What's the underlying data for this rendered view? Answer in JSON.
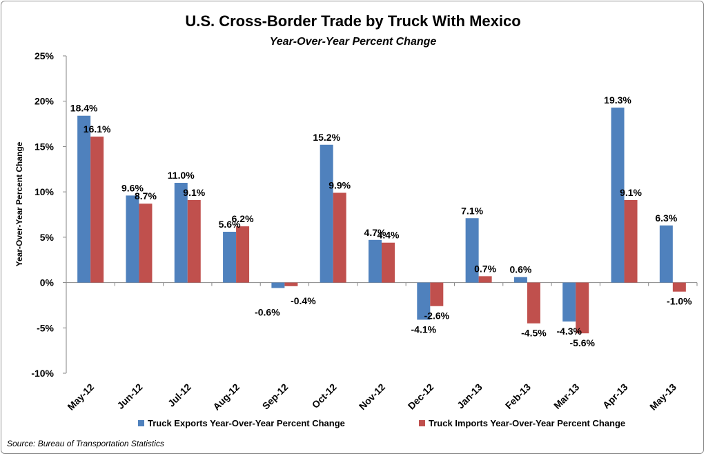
{
  "chart_data": {
    "type": "bar",
    "title": "U.S. Cross-Border Trade by Truck With Mexico",
    "subtitle": "Year-Over-Year  Percent Change",
    "ylabel": "Year-Over-Year Percent Change",
    "xlabel": "",
    "ylim": [
      -10,
      25
    ],
    "yticks": [
      -10,
      -5,
      0,
      5,
      10,
      15,
      20,
      25
    ],
    "ytick_labels": [
      "-10%",
      "-5%",
      "0%",
      "5%",
      "10%",
      "15%",
      "20%",
      "25%"
    ],
    "grid": false,
    "legend_position": "bottom",
    "categories": [
      "May-12",
      "Jun-12",
      "Jul-12",
      "Aug-12",
      "Sep-12",
      "Oct-12",
      "Nov-12",
      "Dec-12",
      "Jan-13",
      "Feb-13",
      "Mar-13",
      "Apr-13",
      "May-13"
    ],
    "series": [
      {
        "name": "Truck Exports Year-Over-Year Percent Change",
        "color": "#4f81bd",
        "values": [
          18.4,
          9.6,
          11.0,
          5.6,
          -0.6,
          15.2,
          4.7,
          -4.1,
          7.1,
          0.6,
          -4.3,
          19.3,
          6.3
        ],
        "labels": [
          "18.4%",
          "9.6%",
          "11.0%",
          "5.6%",
          "-0.6%",
          "15.2%",
          "4.7%",
          "-4.1%",
          "7.1%",
          "0.6%",
          "-4.3%",
          "19.3%",
          "6.3%"
        ]
      },
      {
        "name": "Truck Imports Year-Over-Year Percent Change",
        "color": "#c0504d",
        "values": [
          16.1,
          8.7,
          9.1,
          6.2,
          -0.4,
          9.9,
          4.4,
          -2.6,
          0.7,
          -4.5,
          -5.6,
          9.1,
          -1.0
        ],
        "labels": [
          "16.1%",
          "8.7%",
          "9.1%",
          "6.2%",
          "-0.4%",
          "9.9%",
          "4.4%",
          "-2.6%",
          "0.7%",
          "-4.5%",
          "-5.6%",
          "9.1%",
          "-1.0%"
        ]
      }
    ]
  },
  "source": "Source: Bureau of Transportation Statistics"
}
